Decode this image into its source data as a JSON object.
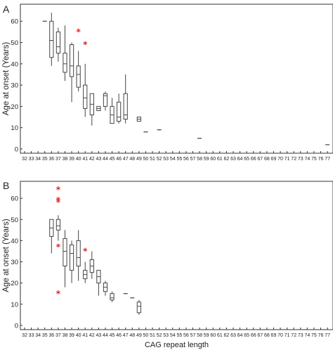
{
  "chart_data": [
    {
      "type": "box",
      "panel_label": "A",
      "title": "",
      "xlabel": "",
      "ylabel": "Age at onset (Years)",
      "categories": [
        "32",
        "33",
        "34",
        "35",
        "36",
        "37",
        "38",
        "39",
        "40",
        "41",
        "42",
        "43",
        "44",
        "45",
        "46",
        "47",
        "48",
        "49",
        "50",
        "51",
        "52",
        "53",
        "54",
        "55",
        "56",
        "57",
        "58",
        "59",
        "60",
        "61",
        "62",
        "63",
        "64",
        "65",
        "66",
        "67",
        "68",
        "69",
        "70",
        "71",
        "72",
        "73",
        "74",
        "75",
        "76",
        "77"
      ],
      "ylim": [
        -2,
        68
      ],
      "yticks": [
        0,
        10,
        20,
        30,
        40,
        50,
        60
      ],
      "grid": false,
      "outlier_color": "#dd2222",
      "boxes": [
        {
          "cag": 35,
          "min": 60,
          "q1": 60,
          "median": 60,
          "q3": 60,
          "max": 60
        },
        {
          "cag": 36,
          "min": 39,
          "q1": 43,
          "median": 51,
          "q3": 60,
          "max": 64
        },
        {
          "cag": 37,
          "min": 41,
          "q1": 45,
          "median": 48,
          "q3": 55,
          "max": 57
        },
        {
          "cag": 38,
          "min": 32,
          "q1": 36,
          "median": 40,
          "q3": 45,
          "max": 58
        },
        {
          "cag": 39,
          "min": 22,
          "q1": 34,
          "median": 39,
          "q3": 49,
          "max": 50
        },
        {
          "cag": 40,
          "min": 27,
          "q1": 29,
          "median": 35,
          "q3": 39,
          "max": 46
        },
        {
          "cag": 41,
          "min": 15,
          "q1": 19,
          "median": 24,
          "q3": 30,
          "max": 40
        },
        {
          "cag": 42,
          "min": 11,
          "q1": 16,
          "median": 21,
          "q3": 26,
          "max": 26
        },
        {
          "cag": 43,
          "min": 18,
          "q1": 18,
          "median": 19,
          "q3": 20,
          "max": 20
        },
        {
          "cag": 44,
          "min": 18,
          "q1": 20,
          "median": 25,
          "q3": 26,
          "max": 27
        },
        {
          "cag": 45,
          "min": 12,
          "q1": 12,
          "median": 16,
          "q3": 20,
          "max": 24
        },
        {
          "cag": 46,
          "min": 12,
          "q1": 13,
          "median": 15,
          "q3": 22,
          "max": 26
        },
        {
          "cag": 47,
          "min": 12,
          "q1": 14,
          "median": 16,
          "q3": 26,
          "max": 35
        },
        {
          "cag": 49,
          "min": 13,
          "q1": 13,
          "median": 14,
          "q3": 15,
          "max": 15
        },
        {
          "cag": 50,
          "min": 8,
          "q1": 8,
          "median": 8,
          "q3": 8,
          "max": 8
        },
        {
          "cag": 52,
          "min": 9,
          "q1": 9,
          "median": 9,
          "q3": 9,
          "max": 9
        },
        {
          "cag": 58,
          "min": 5,
          "q1": 5,
          "median": 5,
          "q3": 5,
          "max": 5
        },
        {
          "cag": 77,
          "min": 2,
          "q1": 2,
          "median": 2,
          "q3": 2,
          "max": 2
        }
      ],
      "outliers": [
        {
          "cag": 40,
          "y": 55
        },
        {
          "cag": 41,
          "y": 49
        }
      ]
    },
    {
      "type": "box",
      "panel_label": "B",
      "title": "",
      "xlabel": "CAG repeat length",
      "ylabel": "Age at onset (Years)",
      "categories": [
        "32",
        "33",
        "34",
        "35",
        "36",
        "37",
        "38",
        "39",
        "40",
        "41",
        "42",
        "43",
        "44",
        "45",
        "46",
        "47",
        "48",
        "49",
        "50",
        "51",
        "52",
        "53",
        "54",
        "55",
        "56",
        "57",
        "58",
        "59",
        "60",
        "61",
        "62",
        "63",
        "64",
        "65",
        "66",
        "67",
        "68",
        "69",
        "70",
        "71",
        "72",
        "73",
        "74",
        "75",
        "76",
        "77"
      ],
      "ylim": [
        -2,
        68
      ],
      "yticks": [
        0,
        10,
        20,
        30,
        40,
        50,
        60
      ],
      "grid": false,
      "outlier_color": "#dd2222",
      "boxes": [
        {
          "cag": 36,
          "min": 34,
          "q1": 42,
          "median": 46,
          "q3": 50,
          "max": 50
        },
        {
          "cag": 37,
          "min": 40,
          "q1": 45,
          "median": 47,
          "q3": 50,
          "max": 52
        },
        {
          "cag": 38,
          "min": 18,
          "q1": 28,
          "median": 35,
          "q3": 41,
          "max": 45
        },
        {
          "cag": 39,
          "min": 20,
          "q1": 26,
          "median": 34,
          "q3": 38,
          "max": 40
        },
        {
          "cag": 40,
          "min": 21,
          "q1": 28,
          "median": 32,
          "q3": 40,
          "max": 45
        },
        {
          "cag": 41,
          "min": 20,
          "q1": 22,
          "median": 24,
          "q3": 26,
          "max": 30
        },
        {
          "cag": 42,
          "min": 22,
          "q1": 25,
          "median": 28,
          "q3": 31,
          "max": 35
        },
        {
          "cag": 43,
          "min": 14,
          "q1": 20,
          "median": 23,
          "q3": 26,
          "max": 26
        },
        {
          "cag": 44,
          "min": 14,
          "q1": 16,
          "median": 18,
          "q3": 20,
          "max": 21
        },
        {
          "cag": 45,
          "min": 11,
          "q1": 12,
          "median": 13,
          "q3": 15,
          "max": 16
        },
        {
          "cag": 47,
          "min": 15,
          "q1": 15,
          "median": 15,
          "q3": 15,
          "max": 15
        },
        {
          "cag": 48,
          "min": 13,
          "q1": 13,
          "median": 13,
          "q3": 13,
          "max": 13
        },
        {
          "cag": 49,
          "min": 5,
          "q1": 6,
          "median": 9,
          "q3": 11,
          "max": 12
        }
      ],
      "outliers": [
        {
          "cag": 37,
          "y": 64
        },
        {
          "cag": 37,
          "y": 59
        },
        {
          "cag": 37,
          "y": 58
        },
        {
          "cag": 37,
          "y": 37
        },
        {
          "cag": 37,
          "y": 15
        },
        {
          "cag": 41,
          "y": 35
        }
      ]
    }
  ]
}
